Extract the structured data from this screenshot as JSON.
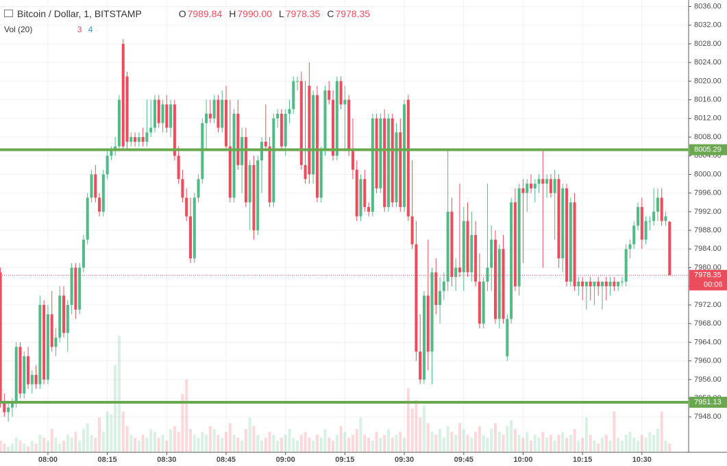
{
  "chart_data": {
    "type": "candlestick",
    "title": "Bitcoin / Dollar, 1, BITSTAMP",
    "ohlc_legend": [
      {
        "key": "O",
        "text": "7989.84"
      },
      {
        "key": "H",
        "text": "7990.00"
      },
      {
        "key": "L",
        "text": "7978.35"
      },
      {
        "key": "C",
        "text": "7978.35"
      }
    ],
    "volume_legend": {
      "title": "Vol (20)",
      "values": [
        "3",
        "4"
      ]
    },
    "up_color": "#53b987",
    "down_color": "#eb4d5c",
    "level_color": "#6aa84f",
    "levels": [
      8005.29,
      7951.13
    ],
    "last_price": 7978.35,
    "countdown": "00:06",
    "xlim": [
      467.9,
      641.8
    ],
    "xticks": [
      {
        "value": 480,
        "label": "08:00"
      },
      {
        "value": 495,
        "label": "08:15"
      },
      {
        "value": 510,
        "label": "08:30"
      },
      {
        "value": 525,
        "label": "08:45"
      },
      {
        "value": 540,
        "label": "09:00"
      },
      {
        "value": 555,
        "label": "09:15"
      },
      {
        "value": 570,
        "label": "09:30"
      },
      {
        "value": 585,
        "label": "09:45"
      },
      {
        "value": 600,
        "label": "10:00"
      },
      {
        "value": 615,
        "label": "10:15"
      },
      {
        "value": 630,
        "label": "10:30"
      }
    ],
    "ylim": [
      7940.4,
      8037.4
    ],
    "yticks": [
      {
        "value": 7948,
        "label": "7948.00"
      },
      {
        "value": 7952,
        "label": "7952.00"
      },
      {
        "value": 7956,
        "label": "7956.00"
      },
      {
        "value": 7960,
        "label": "7960.00"
      },
      {
        "value": 7964,
        "label": "7964.00"
      },
      {
        "value": 7968,
        "label": "7968.00"
      },
      {
        "value": 7972,
        "label": "7972.00"
      },
      {
        "value": 7976,
        "label": "7976.00"
      },
      {
        "value": 7980,
        "label": "7980.00"
      },
      {
        "value": 7984,
        "label": "7984.00"
      },
      {
        "value": 7988,
        "label": "7988.00"
      },
      {
        "value": 7992,
        "label": "7992.00"
      },
      {
        "value": 7996,
        "label": "7996.00"
      },
      {
        "value": 8000,
        "label": "8000.00"
      },
      {
        "value": 8004,
        "label": "8004.00"
      },
      {
        "value": 8008,
        "label": "8008.00"
      },
      {
        "value": 8012,
        "label": "8012.00"
      },
      {
        "value": 8016,
        "label": "8016.00"
      },
      {
        "value": 8020,
        "label": "8020.00"
      },
      {
        "value": 8024,
        "label": "8024.00"
      },
      {
        "value": 8028,
        "label": "8028.00"
      },
      {
        "value": 8032,
        "label": "8032.00"
      },
      {
        "value": 8036,
        "label": "8036.00"
      }
    ],
    "grid": true,
    "x": [
      468,
      469,
      470,
      471,
      472,
      473,
      474,
      475,
      476,
      477,
      478,
      479,
      480,
      481,
      482,
      483,
      484,
      485,
      486,
      487,
      488,
      489,
      490,
      491,
      492,
      493,
      494,
      495,
      496,
      497,
      498,
      499,
      500,
      501,
      502,
      503,
      504,
      505,
      506,
      507,
      508,
      509,
      510,
      511,
      512,
      513,
      514,
      515,
      516,
      517,
      518,
      519,
      520,
      521,
      522,
      523,
      524,
      525,
      526,
      527,
      528,
      529,
      530,
      531,
      532,
      533,
      534,
      535,
      536,
      537,
      538,
      539,
      540,
      541,
      542,
      543,
      544,
      545,
      546,
      547,
      548,
      549,
      550,
      551,
      552,
      553,
      554,
      555,
      556,
      557,
      558,
      559,
      560,
      561,
      562,
      563,
      564,
      565,
      566,
      567,
      568,
      569,
      570,
      571,
      572,
      573,
      574,
      575,
      576,
      577,
      578,
      579,
      580,
      581,
      582,
      583,
      584,
      585,
      586,
      587,
      588,
      589,
      590,
      591,
      592,
      593,
      594,
      595,
      596,
      597,
      598,
      599,
      600,
      601,
      602,
      603,
      604,
      605,
      606,
      607,
      608,
      609,
      610,
      611,
      612,
      613,
      614,
      615,
      616,
      617,
      618,
      619,
      620,
      621,
      622,
      623,
      624,
      625,
      626,
      627,
      628,
      629,
      630,
      631,
      632,
      633,
      634,
      635,
      636,
      637
    ],
    "candles": [
      [
        7979,
        7980,
        7950,
        7951
      ],
      [
        7951,
        7953,
        7948,
        7949
      ],
      [
        7949,
        7951,
        7947,
        7950
      ],
      [
        7950,
        7952,
        7948,
        7951
      ],
      [
        7951,
        7964,
        7950,
        7963
      ],
      [
        7963,
        7964,
        7952,
        7953
      ],
      [
        7953,
        7962,
        7952,
        7961
      ],
      [
        7961,
        7963,
        7954,
        7955
      ],
      [
        7955,
        7958,
        7953,
        7957
      ],
      [
        7957,
        7959,
        7954,
        7955
      ],
      [
        7955,
        7974,
        7954,
        7972
      ],
      [
        7972,
        7973,
        7955,
        7956
      ],
      [
        7956,
        7972,
        7955,
        7970
      ],
      [
        7970,
        7975,
        7962,
        7963
      ],
      [
        7963,
        7967,
        7961,
        7965
      ],
      [
        7965,
        7976,
        7964,
        7974
      ],
      [
        7974,
        7976,
        7965,
        7966
      ],
      [
        7966,
        7973,
        7962,
        7972
      ],
      [
        7972,
        7981,
        7970,
        7980
      ],
      [
        7980,
        7981,
        7969,
        7971
      ],
      [
        7971,
        7981,
        7970,
        7980
      ],
      [
        7980,
        7987,
        7979,
        7986
      ],
      [
        7986,
        7996,
        7985,
        7995
      ],
      [
        7995,
        8001,
        7994,
        8000
      ],
      [
        8000,
        8002,
        7994,
        7995
      ],
      [
        7995,
        7996,
        7991,
        7992
      ],
      [
        7992,
        8001,
        7991,
        8000
      ],
      [
        8000,
        8005,
        7999,
        8004
      ],
      [
        8004,
        8006,
        8003,
        8005
      ],
      [
        8005,
        8008,
        8004,
        8006
      ],
      [
        8006,
        8017,
        8005,
        8016
      ],
      [
        8028,
        8029,
        8005,
        8006
      ],
      [
        8021,
        8022,
        8005,
        8007
      ],
      [
        8007,
        8009,
        8006,
        8008
      ],
      [
        8008,
        8009,
        8006,
        8007
      ],
      [
        8007,
        8009,
        8006,
        8008
      ],
      [
        8008,
        8010,
        8006,
        8007
      ],
      [
        8007,
        8016,
        8006,
        8009
      ],
      [
        8009,
        8016,
        8008,
        8010
      ],
      [
        8010,
        8017,
        8009,
        8016
      ],
      [
        8016,
        8017,
        8010,
        8011
      ],
      [
        8011,
        8016,
        8009,
        8015
      ],
      [
        8015,
        8017,
        8009,
        8010
      ],
      [
        8010,
        8016,
        8008,
        8015
      ],
      [
        8015,
        8016,
        8003,
        8004
      ],
      [
        8004,
        8006,
        7998,
        7999
      ],
      [
        7999,
        8001,
        7994,
        7995
      ],
      [
        7995,
        7997,
        7990,
        7991
      ],
      [
        7991,
        7995,
        7981,
        7982
      ],
      [
        7982,
        7996,
        7981,
        7995
      ],
      [
        7995,
        8000,
        7994,
        7999
      ],
      [
        7999,
        8012,
        7998,
        8011
      ],
      [
        8011,
        8016,
        8005,
        8013
      ],
      [
        8013,
        8016,
        8011,
        8012
      ],
      [
        8012,
        8017,
        8011,
        8016
      ],
      [
        8016,
        8017,
        8009,
        8010
      ],
      [
        8010,
        8018,
        8009,
        8016
      ],
      [
        8016,
        8019,
        8005,
        8006
      ],
      [
        8006,
        8016,
        7994,
        7995
      ],
      [
        7995,
        8014,
        7994,
        8013
      ],
      [
        8013,
        8016,
        8001,
        8002
      ],
      [
        8002,
        8010,
        7996,
        8008
      ],
      [
        8008,
        8010,
        7993,
        7994
      ],
      [
        7994,
        8003,
        7988,
        8002
      ],
      [
        8002,
        8004,
        7986,
        7988
      ],
      [
        7988,
        8004,
        7987,
        8003
      ],
      [
        8003,
        8008,
        7996,
        8007
      ],
      [
        8007,
        8015,
        8005,
        8006
      ],
      [
        8006,
        8008,
        7993,
        7994
      ],
      [
        7994,
        8013,
        7993,
        8012
      ],
      [
        8012,
        8014,
        8010,
        8013
      ],
      [
        8013,
        8014,
        8005,
        8006
      ],
      [
        8006,
        8014,
        8004,
        8013
      ],
      [
        8013,
        8016,
        8011,
        8014
      ],
      [
        8014,
        8021,
        8013,
        8020
      ],
      [
        8020,
        8021,
        8018,
        8020
      ],
      [
        8020,
        8022,
        8001,
        8002
      ],
      [
        8002,
        8020,
        7998,
        7999
      ],
      [
        8019,
        8024,
        7998,
        8000
      ],
      [
        8000,
        8018,
        7998,
        8017
      ],
      [
        8017,
        8019,
        7994,
        7995
      ],
      [
        7995,
        8006,
        7994,
        8005
      ],
      [
        8005,
        8019,
        8004,
        8018
      ],
      [
        8018,
        8020,
        8015,
        8016
      ],
      [
        8016,
        8018,
        8003,
        8004
      ],
      [
        8004,
        8021,
        8003,
        8020
      ],
      [
        8020,
        8021,
        8014,
        8015
      ],
      [
        8015,
        8019,
        8005,
        8016
      ],
      [
        8016,
        8017,
        8004,
        8005
      ],
      [
        8005,
        8012,
        7999,
        8001
      ],
      [
        8001,
        8003,
        7990,
        7991
      ],
      [
        7991,
        8000,
        7990,
        7999
      ],
      [
        7999,
        8001,
        7992,
        7993
      ],
      [
        7993,
        7994,
        7991,
        7992
      ],
      [
        7992,
        8013,
        7991,
        8012
      ],
      [
        8012,
        8013,
        7996,
        7997
      ],
      [
        7997,
        8013,
        7996,
        8012
      ],
      [
        8012,
        8014,
        7992,
        7993
      ],
      [
        7993,
        8013,
        7992,
        8012
      ],
      [
        8012,
        8013,
        7993,
        7994
      ],
      [
        7994,
        8011,
        7993,
        8009
      ],
      [
        8009,
        8012,
        7992,
        7993
      ],
      [
        7993,
        8016,
        7992,
        8015
      ],
      [
        8016,
        8017,
        7990,
        7991
      ],
      [
        7991,
        8003,
        7984,
        7985
      ],
      [
        7985,
        7990,
        7960,
        7962
      ],
      [
        7962,
        7970,
        7955,
        7956
      ],
      [
        7956,
        7975,
        7955,
        7974
      ],
      [
        7974,
        7986,
        7958,
        7962
      ],
      [
        7962,
        7980,
        7955,
        7979
      ],
      [
        7979,
        7982,
        7970,
        7972
      ],
      [
        7972,
        7978,
        7968,
        7975
      ],
      [
        7975,
        7979,
        7973,
        7977
      ],
      [
        7977,
        8005,
        7975,
        7992
      ],
      [
        7992,
        7995,
        7976,
        7978
      ],
      [
        7978,
        7982,
        7975,
        7980
      ],
      [
        7980,
        7998,
        7978,
        7979
      ],
      [
        7979,
        7993,
        7975,
        7990
      ],
      [
        7990,
        7994,
        7978,
        7979
      ],
      [
        7979,
        7992,
        7977,
        7987
      ],
      [
        7987,
        7990,
        7976,
        7977
      ],
      [
        7977,
        7983,
        7967,
        7968
      ],
      [
        7968,
        7978,
        7967,
        7977
      ],
      [
        7977,
        7998,
        7975,
        7980
      ],
      [
        7980,
        7989,
        7975,
        7986
      ],
      [
        7986,
        7988,
        7968,
        7969
      ],
      [
        7969,
        7985,
        7967,
        7984
      ],
      [
        7984,
        7987,
        7968,
        7969
      ],
      [
        7961,
        7970,
        7960,
        7969
      ],
      [
        7969,
        7995,
        7968,
        7994
      ],
      [
        7994,
        7997,
        7975,
        7976
      ],
      [
        7976,
        7998,
        7974,
        7997
      ],
      [
        7997,
        7999,
        7981,
        7996
      ],
      [
        7996,
        7999,
        7992,
        7998
      ],
      [
        7998,
        8000,
        7996,
        7997
      ],
      [
        7997,
        7999,
        7994,
        7998
      ],
      [
        7998,
        8000,
        7996,
        7999
      ],
      [
        7999,
        8005,
        7980,
        7998
      ],
      [
        7998,
        8000,
        7995,
        7999
      ],
      [
        7999,
        8000,
        7995,
        7996
      ],
      [
        7996,
        8001,
        7986,
        7999
      ],
      [
        7999,
        8000,
        7980,
        7982
      ],
      [
        7982,
        7998,
        7979,
        7997
      ],
      [
        7997,
        7998,
        7976,
        7977
      ],
      [
        7977,
        7995,
        7976,
        7994
      ],
      [
        7994,
        7996,
        7975,
        7976
      ],
      [
        7976,
        7978,
        7974,
        7977
      ],
      [
        7977,
        7978,
        7973,
        7976
      ],
      [
        7976,
        7977,
        7971,
        7977
      ],
      [
        7977,
        7978,
        7973,
        7976
      ],
      [
        7976,
        7977,
        7972,
        7977
      ],
      [
        7977,
        7978,
        7974,
        7976
      ],
      [
        7976,
        7977,
        7971,
        7977
      ],
      [
        7977,
        7978,
        7973,
        7976
      ],
      [
        7976,
        7978,
        7974,
        7977
      ],
      [
        7977,
        7978,
        7975,
        7976
      ],
      [
        7976,
        7977,
        7975,
        7977
      ],
      [
        7977,
        7978,
        7976,
        7977
      ],
      [
        7977,
        7985,
        7976,
        7984
      ],
      [
        7984,
        7986,
        7982,
        7985
      ],
      [
        7985,
        7990,
        7984,
        7989
      ],
      [
        7989,
        7994,
        7988,
        7993
      ],
      [
        7993,
        7995,
        7984,
        7986
      ],
      [
        7986,
        7991,
        7985,
        7990
      ],
      [
        7990,
        7991,
        7988,
        7990
      ],
      [
        7990,
        7997,
        7989,
        7992
      ],
      [
        7992,
        7997,
        7990,
        7995
      ],
      [
        7995,
        7997,
        7989,
        7990
      ],
      [
        7990,
        7992,
        7989,
        7991
      ],
      [
        7989.84,
        7990,
        7978.35,
        7978.35
      ]
    ],
    "volume": [
      4,
      3,
      2,
      3,
      5,
      4,
      3,
      2,
      4,
      3,
      6,
      5,
      4,
      8,
      5,
      3,
      4,
      6,
      5,
      7,
      4,
      8,
      10,
      6,
      5,
      12,
      7,
      14,
      13,
      30,
      40,
      14,
      9,
      6,
      5,
      4,
      6,
      5,
      8,
      7,
      5,
      6,
      4,
      8,
      9,
      7,
      20,
      25,
      8,
      6,
      5,
      7,
      6,
      9,
      8,
      6,
      5,
      7,
      10,
      6,
      5,
      4,
      8,
      12,
      9,
      6,
      4,
      5,
      7,
      6,
      4,
      5,
      6,
      8,
      5,
      4,
      6,
      7,
      5,
      4,
      6,
      5,
      8,
      5,
      4,
      6,
      9,
      7,
      5,
      6,
      8,
      12,
      6,
      5,
      4,
      7,
      5,
      6,
      8,
      5,
      6,
      7,
      5,
      22,
      15,
      18,
      12,
      16,
      10,
      7,
      6,
      8,
      5,
      9,
      7,
      6,
      10,
      8,
      6,
      5,
      7,
      9,
      6,
      5,
      8,
      10,
      7,
      6,
      9,
      11,
      8,
      6,
      5,
      7,
      4,
      6,
      5,
      7,
      5,
      6,
      4,
      6,
      7,
      5,
      6,
      8,
      4,
      5,
      12,
      6,
      4,
      3,
      5,
      6,
      4,
      14,
      5,
      4,
      6,
      7,
      5,
      4,
      6,
      5,
      7,
      6,
      8,
      14,
      4,
      3
    ]
  }
}
